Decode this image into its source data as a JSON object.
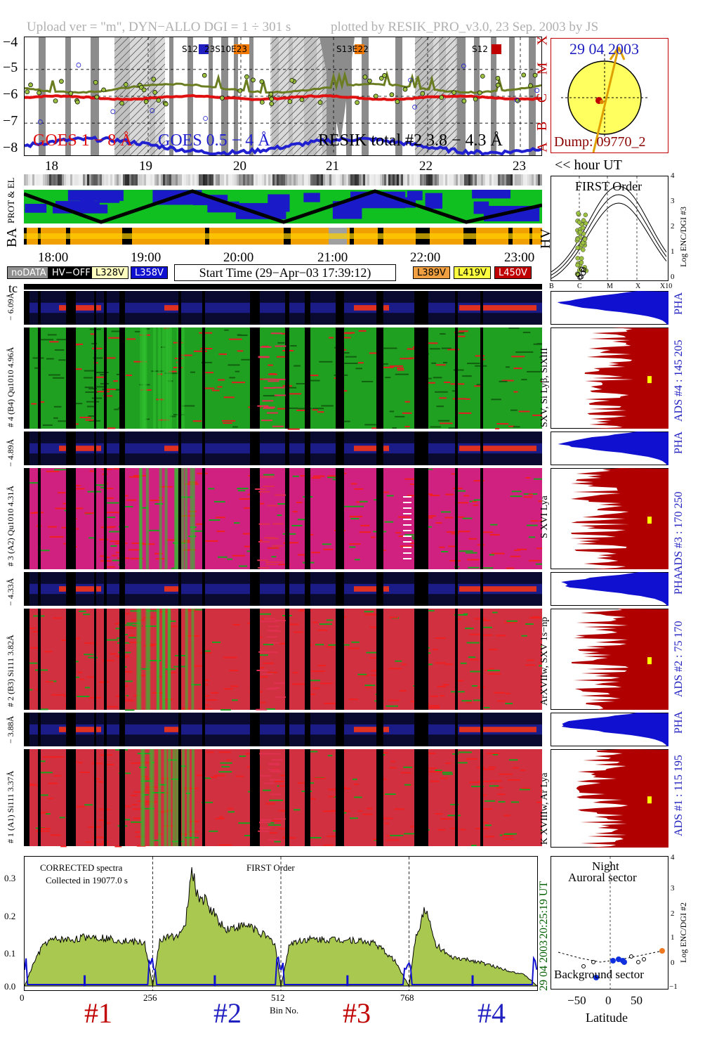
{
  "header": {
    "left": "Upload ver = \"m\", DYN−ALLO DGI =   1 ÷ 301 s",
    "right": "plotted by RESIK_PRO_v3.0, 23 Sep. 2003 by JS"
  },
  "goes_panel": {
    "y_ticks": [
      "−4",
      "−5",
      "−6",
      "−7",
      "−8"
    ],
    "flare_classes": [
      "A",
      "B",
      "C",
      "M",
      "X"
    ],
    "legend_goes1": "GOES 1 − 8 Å",
    "legend_goes2": "GOES 0.5 − 4 Å",
    "legend_resik": "RESIK total #2  3.8 − 4.3 Å",
    "tags": [
      {
        "label": "S12",
        "color": "#2020c0"
      },
      {
        "label": "23S10E23",
        "color": "#f07800"
      },
      {
        "label": "S13E22",
        "color": "#f07800"
      },
      {
        "label": "S12",
        "color": "#c00000"
      }
    ],
    "colors": {
      "goes1": "#e01010",
      "goes2": "#2020d0",
      "resik": "#9cc040"
    }
  },
  "sun_panel": {
    "date": "29 04 2003",
    "dump": "Dump: 09770_2"
  },
  "hour_axis": {
    "labels": [
      "18",
      "19",
      "20",
      "21",
      "22",
      "23"
    ],
    "caption": "<< hour UT"
  },
  "status_panel": {
    "label_prot": "PROT & EL",
    "label_ba": "BA",
    "label_hv": "HV",
    "time_labels": [
      "18:00",
      "19:00",
      "20:00",
      "21:00",
      "22:00",
      "23:00"
    ]
  },
  "legend": {
    "nodata": "noDATA",
    "hvoff": "HV−OFF",
    "v328": "L328V",
    "v358": "L358V",
    "start_time": "Start Time (29−Apr−03 17:39:12)",
    "v389": "L389V",
    "v419": "L419V",
    "v450": "L450V",
    "tc": "tc"
  },
  "first_order_panel": {
    "title": "FIRST Order",
    "ylabel": "Log ENC/DGI #3",
    "y_ticks": [
      "4",
      "3",
      "2",
      "1",
      "0"
    ],
    "x_ticks": [
      "B",
      "C",
      "M",
      "X",
      "X10"
    ]
  },
  "channels": [
    {
      "pha_label": "− 6.09Å",
      "ads_left": "# 4 (B4) Qu1010 4.96Å",
      "line_id": "SXV, Si Lyβ, SiXIII",
      "ads_label": "ADS #4 :  145 205",
      "pha": "PHA"
    },
    {
      "pha_label": "− 4.89Å",
      "ads_left": "# 3 (A2) Qu1010 4.31Å",
      "line_id": "S XVI Lya",
      "ads_label": "ADS #3 :  170 250",
      "pha": "PHA"
    },
    {
      "pha_label": "− 4.33Å",
      "ads_left": "# 2 (B3) Si111 3.82Å",
      "line_id": "ArXVIIw, SXV 1s−np",
      "ads_label": "ADS #2 :  75 170",
      "pha": "PHA"
    },
    {
      "pha_label": "− 3.88Å",
      "ads_left": "# 1 (A1) Si111 3.37Å",
      "line_id": "K XVIIIw, Ar Lya",
      "ads_label": "ADS #1 :  115 195",
      "pha": "PHA"
    }
  ],
  "spectrum_panel": {
    "text1": "CORRECTED spectra",
    "text2": "Collected in 19077.0 s",
    "text3": "FIRST Order",
    "xlabel": "Bin No.",
    "x_ticks": [
      "0",
      "256",
      "512",
      "768"
    ],
    "y_ticks": [
      "0.3",
      "0.2",
      "0.1",
      "0.0"
    ],
    "time_right": "20:25:19 UT",
    "date_right": "29 04 2003",
    "detectors": [
      "#1",
      "#2",
      "#3",
      "#4"
    ],
    "detector_colors": [
      "#c00000",
      "#2020c0",
      "#c00000",
      "#2020c0"
    ]
  },
  "chart_data": {
    "type": "area",
    "title": "",
    "xlabel": "Bin No.",
    "ylabel": "",
    "xlim": [
      0,
      1024
    ],
    "ylim": [
      0,
      0.35
    ],
    "series": [
      {
        "name": "#1",
        "x": [
          0,
          20,
          40,
          60,
          100,
          130,
          180,
          240,
          256
        ],
        "values": [
          0.0,
          0.07,
          0.12,
          0.13,
          0.13,
          0.14,
          0.13,
          0.12,
          0.0
        ]
      },
      {
        "name": "#2",
        "x": [
          256,
          270,
          300,
          320,
          335,
          345,
          360,
          400,
          450,
          500,
          512
        ],
        "values": [
          0.0,
          0.13,
          0.14,
          0.16,
          0.33,
          0.25,
          0.24,
          0.16,
          0.17,
          0.12,
          0.0
        ]
      },
      {
        "name": "#3",
        "x": [
          512,
          530,
          560,
          600,
          650,
          700,
          740,
          768
        ],
        "values": [
          0.0,
          0.12,
          0.13,
          0.13,
          0.13,
          0.12,
          0.07,
          0.0
        ]
      },
      {
        "name": "#4",
        "x": [
          768,
          780,
          800,
          820,
          850,
          900,
          950,
          1000,
          1024
        ],
        "values": [
          0.0,
          0.13,
          0.22,
          0.12,
          0.08,
          0.07,
          0.05,
          0.03,
          0.0
        ]
      }
    ]
  },
  "latitude_panel": {
    "title1": "Night",
    "title2": "Auroral sector",
    "bottom": "Background sector",
    "xlabel": "Latitude",
    "ylabel": "Log ENC/DGI #2",
    "x_ticks": [
      "−50",
      "0",
      "50"
    ],
    "y_ticks": [
      "4",
      "3",
      "2",
      "1",
      "0",
      "−1"
    ]
  }
}
